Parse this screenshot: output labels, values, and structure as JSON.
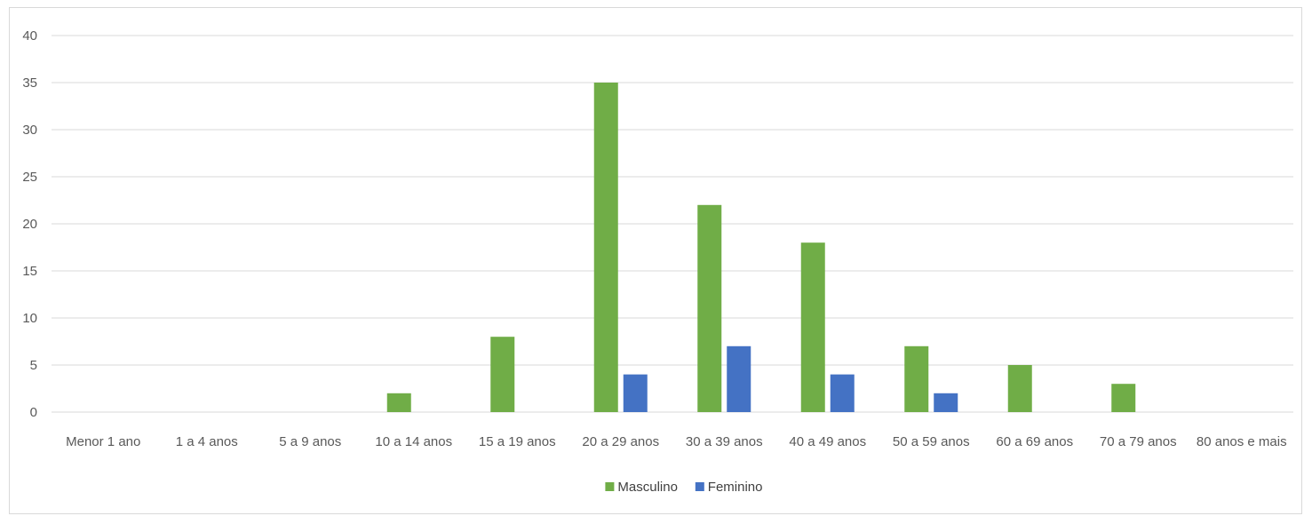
{
  "chart_data": {
    "type": "bar",
    "categories": [
      "Menor 1 ano",
      "1 a 4 anos",
      "5 a 9 anos",
      "10 a 14 anos",
      "15 a 19 anos",
      "20 a 29 anos",
      "30 a 39 anos",
      "40 a 49 anos",
      "50 a 59 anos",
      "60 a 69 anos",
      "70 a 79 anos",
      "80 anos e mais"
    ],
    "series": [
      {
        "name": "Masculino",
        "color": "#70ad47",
        "values": [
          0,
          0,
          0,
          2,
          8,
          35,
          22,
          18,
          7,
          5,
          3,
          0
        ]
      },
      {
        "name": "Feminino",
        "color": "#4472c4",
        "values": [
          0,
          0,
          0,
          0,
          0,
          4,
          7,
          4,
          2,
          0,
          0,
          0
        ]
      }
    ],
    "title": "",
    "xlabel": "",
    "ylabel": "",
    "ylim": [
      0,
      40
    ],
    "yticks": [
      "0",
      "5",
      "10",
      "15",
      "20",
      "25",
      "30",
      "35",
      "40"
    ],
    "grid": true,
    "legend_position": "bottom-center"
  }
}
